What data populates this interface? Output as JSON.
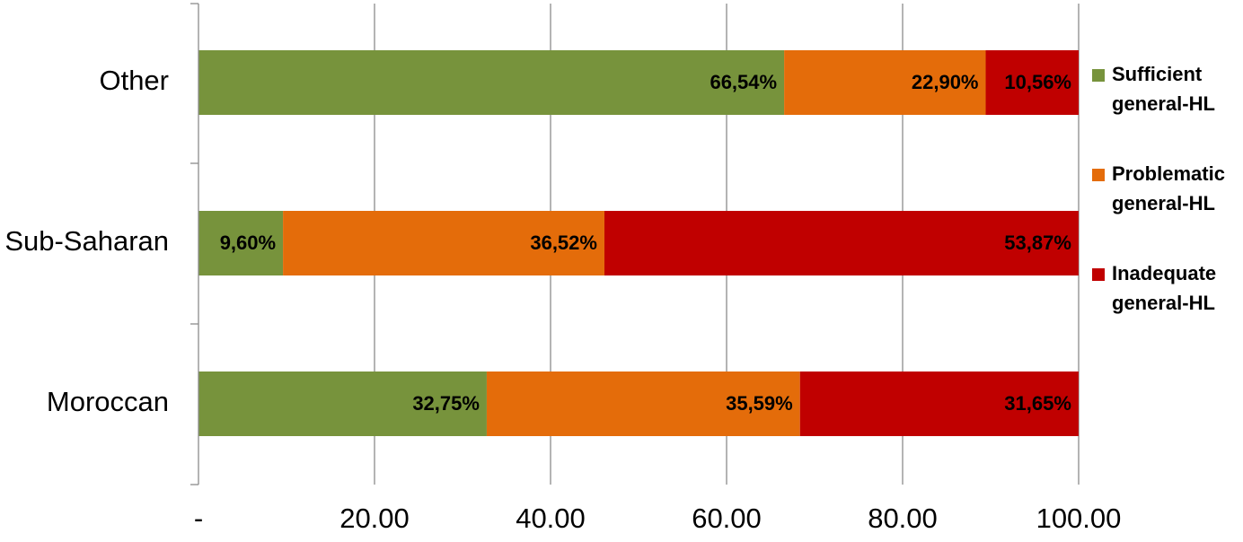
{
  "chart_data": {
    "type": "bar",
    "orientation": "horizontal",
    "stacked": true,
    "title": "",
    "xlabel": "",
    "ylabel": "",
    "categories": [
      "Other",
      "Sub-Saharan",
      "Moroccan"
    ],
    "series": [
      {
        "name": "Sufficient general-HL",
        "name_lines": [
          "Sufficient",
          "general-HL"
        ],
        "color": "#77933C",
        "values": [
          66.54,
          9.6,
          32.75
        ],
        "labels": [
          "66,54%",
          "9,60%",
          "32,75%"
        ]
      },
      {
        "name": "Problematic general-HL",
        "name_lines": [
          "Problematic",
          "general-HL"
        ],
        "color": "#E46C0A",
        "values": [
          22.9,
          36.52,
          35.59
        ],
        "labels": [
          "22,90%",
          "36,52%",
          "35,59%"
        ]
      },
      {
        "name": "Inadequate general-HL",
        "name_lines": [
          "Inadequate",
          "general-HL"
        ],
        "color": "#C00000",
        "values": [
          10.56,
          53.87,
          31.65
        ],
        "labels": [
          "10,56%",
          "53,87%",
          "31,65%"
        ]
      }
    ],
    "xlim": [
      0,
      100
    ],
    "xticks": [
      0,
      20,
      40,
      60,
      80,
      100
    ],
    "xtick_labels": [
      "-",
      "20.00",
      "40.00",
      "60.00",
      "80.00",
      "100.00"
    ],
    "grid": true,
    "legend": "right"
  }
}
